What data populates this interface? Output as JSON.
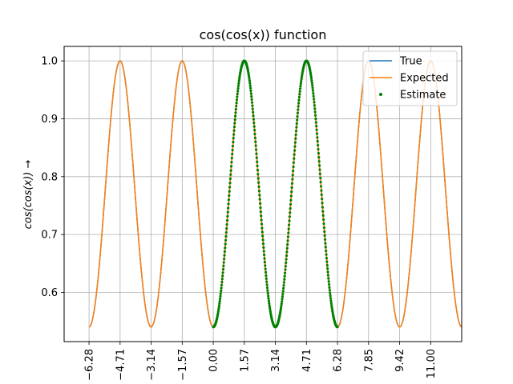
{
  "chart_data": {
    "type": "line",
    "title": "cos(cos(x)) function",
    "xlabel": "",
    "ylabel": "cos(cos(x)) →",
    "xlim": [
      -7.54,
      12.56
    ],
    "ylim": [
      0.515,
      1.025
    ],
    "x_ticks": [
      -6.28,
      -4.71,
      -3.14,
      -1.57,
      0.0,
      1.57,
      3.14,
      4.71,
      6.28,
      7.85,
      9.42,
      11.0
    ],
    "x_tick_labels": [
      "−6.28",
      "−4.71",
      "−3.14",
      "−1.57",
      "0.00",
      "1.57",
      "3.14",
      "4.71",
      "6.28",
      "7.85",
      "9.42",
      "11.00"
    ],
    "y_ticks": [
      0.6,
      0.7,
      0.8,
      0.9,
      1.0
    ],
    "y_tick_labels": [
      "0.6",
      "0.7",
      "0.8",
      "0.9",
      "1.0"
    ],
    "grid": true,
    "legend_position": "top-right",
    "series": [
      {
        "name": "True",
        "style": "line",
        "color": "#1f77b4",
        "function": "cos(cos(x))",
        "x_range": [
          -6.28,
          12.56
        ],
        "samples": [
          {
            "x": -6.28,
            "y": 0.54
          },
          {
            "x": -4.71,
            "y": 1.0
          },
          {
            "x": -3.14,
            "y": 0.54
          },
          {
            "x": -1.57,
            "y": 1.0
          },
          {
            "x": 0.0,
            "y": 0.54
          },
          {
            "x": 1.57,
            "y": 1.0
          },
          {
            "x": 3.14,
            "y": 0.54
          },
          {
            "x": 4.71,
            "y": 1.0
          },
          {
            "x": 6.28,
            "y": 0.54
          },
          {
            "x": 7.85,
            "y": 1.0
          },
          {
            "x": 9.42,
            "y": 0.54
          },
          {
            "x": 11.0,
            "y": 1.0
          },
          {
            "x": 12.56,
            "y": 0.54
          }
        ]
      },
      {
        "name": "Expected",
        "style": "line",
        "color": "#ff7f0e",
        "function": "cos(cos(x))",
        "x_range": [
          -6.28,
          12.56
        ],
        "samples": [
          {
            "x": -6.28,
            "y": 0.54
          },
          {
            "x": -4.71,
            "y": 1.0
          },
          {
            "x": -3.14,
            "y": 0.54
          },
          {
            "x": -1.57,
            "y": 1.0
          },
          {
            "x": 0.0,
            "y": 0.54
          },
          {
            "x": 1.57,
            "y": 1.0
          },
          {
            "x": 3.14,
            "y": 0.54
          },
          {
            "x": 4.71,
            "y": 1.0
          },
          {
            "x": 6.28,
            "y": 0.54
          },
          {
            "x": 7.85,
            "y": 1.0
          },
          {
            "x": 9.42,
            "y": 0.54
          },
          {
            "x": 11.0,
            "y": 1.0
          },
          {
            "x": 12.56,
            "y": 0.54
          }
        ]
      },
      {
        "name": "Estimate",
        "style": "dots",
        "color": "#008000",
        "function": "cos(cos(x))",
        "x_range": [
          0.0,
          6.28
        ],
        "samples": [
          {
            "x": 0.0,
            "y": 0.54
          },
          {
            "x": 1.57,
            "y": 1.0
          },
          {
            "x": 3.14,
            "y": 0.54
          },
          {
            "x": 4.71,
            "y": 1.0
          },
          {
            "x": 6.28,
            "y": 0.54
          }
        ]
      }
    ]
  }
}
